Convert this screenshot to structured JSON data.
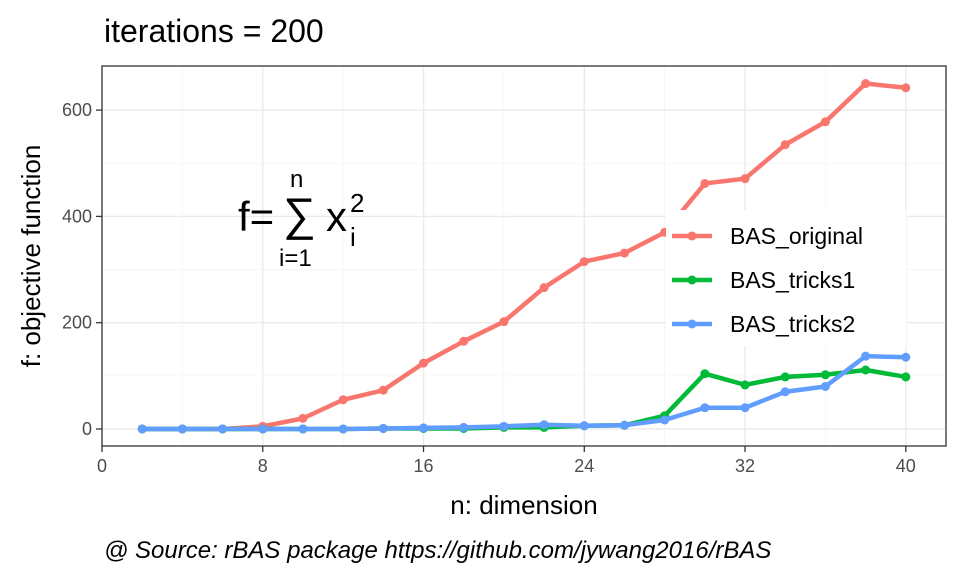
{
  "chart_data": {
    "type": "line",
    "title": "iterations = 200",
    "xlabel": "n: dimension",
    "ylabel": "f: objective function",
    "xlim": [
      0,
      42
    ],
    "ylim": [
      -32,
      683
    ],
    "x_ticks": [
      "0",
      "8",
      "16",
      "24",
      "32",
      "40"
    ],
    "x_tick_values": [
      0,
      8,
      16,
      24,
      32,
      40
    ],
    "y_ticks": [
      "0",
      "200",
      "400",
      "600"
    ],
    "y_tick_values": [
      0,
      200,
      400,
      600
    ],
    "grid": true,
    "legend_position": "inside-right",
    "x": [
      2,
      4,
      6,
      8,
      10,
      12,
      14,
      16,
      18,
      20,
      22,
      24,
      26,
      28,
      30,
      32,
      34,
      36,
      38,
      40
    ],
    "series": [
      {
        "name": "BAS_original",
        "color": "#F8766D",
        "values": [
          0,
          0,
          0,
          5,
          20,
          55,
          73,
          124,
          165,
          202,
          266,
          315,
          331,
          370,
          462,
          471,
          535,
          578,
          650,
          642
        ]
      },
      {
        "name": "BAS_tricks1",
        "color": "#00BA38",
        "values": [
          0,
          0,
          0,
          0,
          0,
          0,
          1,
          1,
          1,
          3,
          3,
          6,
          7,
          25,
          104,
          83,
          98,
          102,
          111,
          98
        ]
      },
      {
        "name": "BAS_tricks2",
        "color": "#619CFF",
        "values": [
          0,
          0,
          0,
          0,
          0,
          0,
          1,
          2,
          3,
          5,
          8,
          6,
          7,
          17,
          40,
          40,
          70,
          80,
          137,
          135
        ]
      }
    ],
    "annotation": {
      "lhs": "f=",
      "sum": "∑",
      "upper": "n",
      "lower": "i=1",
      "term": "x",
      "superscript": "2",
      "subscript": "i"
    },
    "caption": "@ Source: rBAS package https://github.com/jywang2016/rBAS"
  }
}
